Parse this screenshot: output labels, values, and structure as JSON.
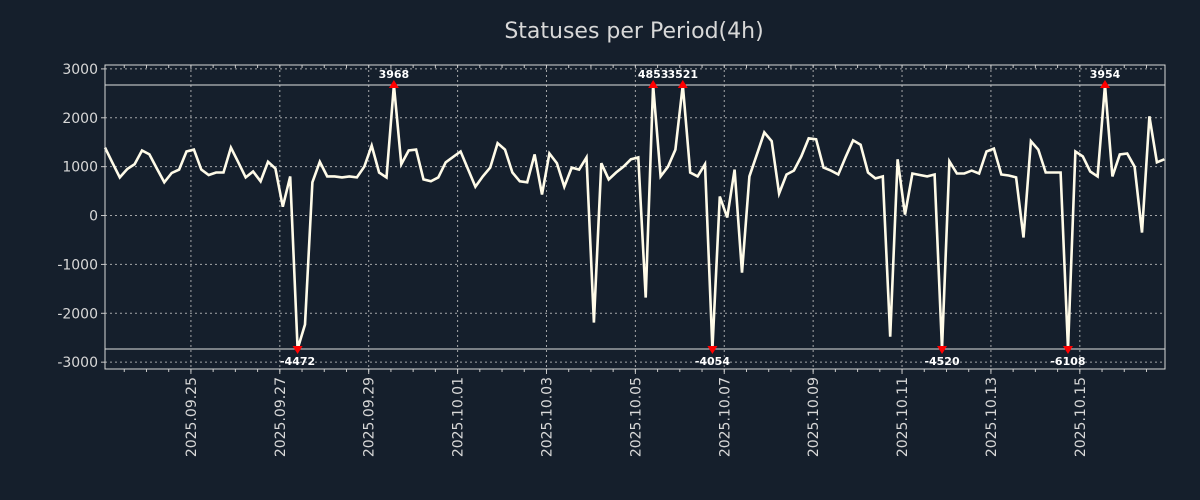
{
  "chart_data": {
    "type": "line",
    "title": "Statuses per Period(4h)",
    "xlabel": "",
    "ylabel": "",
    "period_hours": 4,
    "xlim": [
      0,
      143.1
    ],
    "ylim": [
      -3140,
      3080
    ],
    "grid": true,
    "legend": "none",
    "clip_limits": {
      "low": -2730,
      "high": 2670
    },
    "colors": {
      "background": "#151f2c",
      "line": "#fffbe8",
      "marker": "#ff0000",
      "grid": "#c8c8c8",
      "text": "#d8d8d8"
    },
    "y_ticks": [
      {
        "value": 3000,
        "label": "3000"
      },
      {
        "value": 2000,
        "label": "2000"
      },
      {
        "value": 1000,
        "label": "1000"
      },
      {
        "value": 0,
        "label": "0"
      },
      {
        "value": -1000,
        "label": "-1000"
      },
      {
        "value": -2000,
        "label": "-2000"
      },
      {
        "value": -3000,
        "label": "-3000"
      }
    ],
    "x_ticks": [
      {
        "index": 11.6,
        "label": "2025.09.25"
      },
      {
        "index": 23.6,
        "label": "2025.09.27"
      },
      {
        "index": 35.6,
        "label": "2025.09.29"
      },
      {
        "index": 47.6,
        "label": "2025.10.01"
      },
      {
        "index": 59.6,
        "label": "2025.10.03"
      },
      {
        "index": 71.6,
        "label": "2025.10.05"
      },
      {
        "index": 83.6,
        "label": "2025.10.07"
      },
      {
        "index": 95.6,
        "label": "2025.10.09"
      },
      {
        "index": 107.6,
        "label": "2025.10.11"
      },
      {
        "index": 119.6,
        "label": "2025.10.13"
      },
      {
        "index": 131.6,
        "label": "2025.10.15"
      }
    ],
    "values": [
      1390,
      1080,
      780,
      950,
      1050,
      1330,
      1250,
      960,
      680,
      870,
      940,
      1310,
      1350,
      940,
      830,
      880,
      880,
      1390,
      1090,
      780,
      900,
      700,
      1100,
      960,
      180,
      800,
      -4472,
      -2230,
      680,
      1100,
      800,
      800,
      780,
      800,
      780,
      1000,
      1430,
      880,
      780,
      3968,
      1050,
      1330,
      1350,
      740,
      700,
      780,
      1090,
      1200,
      1310,
      950,
      590,
      800,
      980,
      1480,
      1350,
      880,
      700,
      680,
      1250,
      430,
      1270,
      1070,
      590,
      980,
      940,
      1190,
      -2190,
      1070,
      740,
      880,
      1000,
      1150,
      1190,
      -1680,
      4853,
      800,
      1000,
      1350,
      3521,
      880,
      800,
      1050,
      -4054,
      390,
      -40,
      940,
      -1170,
      800,
      1250,
      1700,
      1520,
      450,
      840,
      920,
      1210,
      1580,
      1560,
      980,
      920,
      840,
      1200,
      1540,
      1450,
      880,
      760,
      800,
      -2480,
      1150,
      20,
      860,
      830,
      800,
      840,
      -4520,
      1110,
      860,
      860,
      920,
      860,
      1310,
      1370,
      840,
      820,
      780,
      -450,
      1520,
      1350,
      880,
      880,
      880,
      -6108,
      1310,
      1210,
      900,
      800,
      3954,
      800,
      1250,
      1270,
      1000,
      -350,
      2030,
      1090,
      1150
    ],
    "annotations": [
      {
        "index": 26,
        "value": -4472,
        "label": "-4472",
        "direction": "down"
      },
      {
        "index": 39,
        "value": 3968,
        "label": "3968",
        "direction": "up"
      },
      {
        "index": 74,
        "value": 4853,
        "label": "4853",
        "direction": "up"
      },
      {
        "index": 78,
        "value": 3521,
        "label": "3521",
        "direction": "up"
      },
      {
        "index": 82,
        "value": -4054,
        "label": "-4054",
        "direction": "down"
      },
      {
        "index": 113,
        "value": -4520,
        "label": "-4520",
        "direction": "down"
      },
      {
        "index": 130,
        "value": -6108,
        "label": "-6108",
        "direction": "down"
      },
      {
        "index": 135,
        "value": 3954,
        "label": "3954",
        "direction": "up"
      }
    ]
  }
}
